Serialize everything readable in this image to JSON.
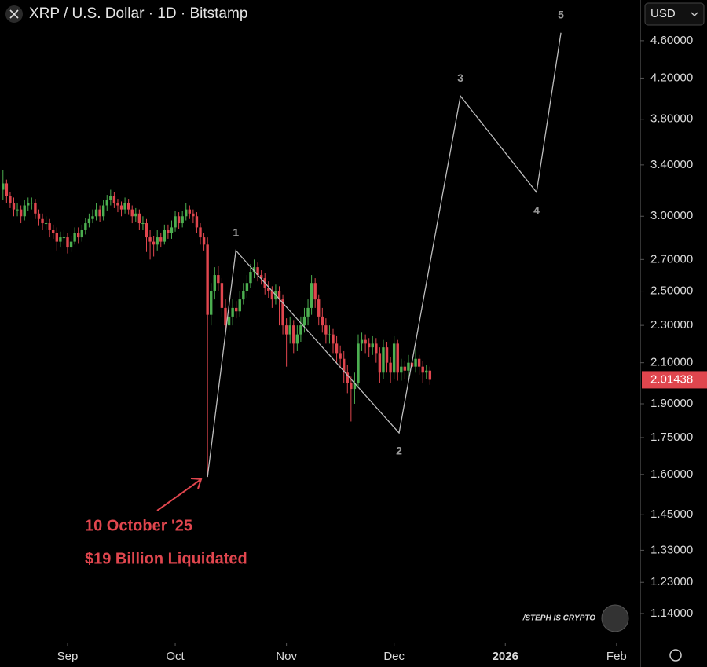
{
  "chart_data": {
    "type": "candlestick",
    "title": "XRP / U.S. Dollar · 1D · Bitstamp",
    "currency": "USD",
    "watermark": "/STEPH IS CRYPTO",
    "annotations": [
      "10 October '25",
      "$19 Billion Liquidated"
    ],
    "log_scale": true,
    "up_color": "#4caf50",
    "down_color": "#e0464e",
    "wave_color": "#bdbdbd",
    "ylim": [
      1.062,
      5.08
    ],
    "yticks": [
      {
        "value": 4.6,
        "label": "4.60000"
      },
      {
        "value": 4.2,
        "label": "4.20000"
      },
      {
        "value": 3.8,
        "label": "3.80000"
      },
      {
        "value": 3.4,
        "label": "3.40000"
      },
      {
        "value": 3.0,
        "label": "3.00000"
      },
      {
        "value": 2.7,
        "label": "2.70000"
      },
      {
        "value": 2.5,
        "label": "2.50000"
      },
      {
        "value": 2.3,
        "label": "2.30000"
      },
      {
        "value": 2.1,
        "label": "2.10000"
      },
      {
        "value": 1.9,
        "label": "1.90000"
      },
      {
        "value": 1.75,
        "label": "1.75000"
      },
      {
        "value": 1.6,
        "label": "1.60000"
      },
      {
        "value": 1.45,
        "label": "1.45000"
      },
      {
        "value": 1.33,
        "label": "1.33000"
      },
      {
        "value": 1.23,
        "label": "1.23000"
      },
      {
        "value": 1.14,
        "label": "1.14000"
      }
    ],
    "xlim": [
      -18.83,
      159.6
    ],
    "xticks": [
      {
        "value": 0,
        "label": "Sep"
      },
      {
        "value": 30,
        "label": "Oct"
      },
      {
        "value": 61,
        "label": "Nov"
      },
      {
        "value": 91,
        "label": "Dec"
      },
      {
        "value": 122,
        "label": "2026"
      },
      {
        "value": 153,
        "label": "Feb"
      }
    ],
    "x": [
      -18,
      -17,
      -16,
      -15,
      -14,
      -13,
      -12,
      -11,
      -10,
      -9,
      -8,
      -7,
      -6,
      -5,
      -4,
      -3,
      -2,
      -1,
      0,
      1,
      2,
      3,
      4,
      5,
      6,
      7,
      8,
      9,
      10,
      11,
      12,
      13,
      14,
      15,
      16,
      17,
      18,
      19,
      20,
      21,
      22,
      23,
      24,
      25,
      26,
      27,
      28,
      29,
      30,
      31,
      32,
      33,
      34,
      35,
      36,
      37,
      38,
      39,
      40,
      41,
      42,
      43,
      44,
      45,
      46,
      47,
      48,
      49,
      50,
      51,
      52,
      53,
      54,
      55,
      56,
      57,
      58,
      59,
      60,
      61,
      62,
      63,
      64,
      65,
      66,
      67,
      68,
      69,
      70,
      71,
      72,
      73,
      74,
      75,
      76,
      77,
      78,
      79,
      80,
      81,
      82,
      83,
      84,
      85,
      86,
      87,
      88,
      89,
      90,
      91,
      92,
      93,
      94,
      95,
      96,
      97,
      98,
      99,
      100,
      101
    ],
    "open": [
      3.2,
      3.25,
      3.15,
      3.1,
      3.05,
      3.05,
      3.0,
      3.08,
      3.1,
      3.1,
      3.02,
      2.98,
      2.95,
      2.95,
      2.9,
      2.88,
      2.82,
      2.85,
      2.85,
      2.78,
      2.82,
      2.88,
      2.85,
      2.9,
      2.95,
      2.98,
      3.0,
      3.05,
      3.0,
      3.08,
      3.12,
      3.15,
      3.1,
      3.08,
      3.05,
      3.1,
      3.05,
      3.0,
      3.02,
      2.95,
      2.95,
      2.85,
      2.82,
      2.8,
      2.85,
      2.82,
      2.9,
      2.88,
      2.92,
      3.0,
      2.95,
      3.0,
      3.05,
      3.02,
      3.0,
      2.92,
      2.85,
      2.8,
      2.36,
      2.5,
      2.6,
      2.55,
      2.4,
      2.3,
      2.35,
      2.4,
      2.38,
      2.45,
      2.5,
      2.55,
      2.62,
      2.65,
      2.6,
      2.58,
      2.52,
      2.5,
      2.45,
      2.5,
      2.45,
      2.3,
      2.25,
      2.3,
      2.2,
      2.25,
      2.3,
      2.35,
      2.4,
      2.55,
      2.45,
      2.35,
      2.3,
      2.25,
      2.25,
      2.2,
      2.15,
      2.12,
      2.05,
      2.0,
      1.97,
      2.0,
      2.2,
      2.22,
      2.2,
      2.18,
      2.2,
      2.15,
      2.05,
      2.18,
      2.1,
      2.05,
      2.2,
      2.05,
      2.08,
      2.06,
      2.1,
      2.08,
      2.12,
      2.08,
      2.05,
      2.06
    ],
    "high": [
      3.36,
      3.28,
      3.18,
      3.14,
      3.1,
      3.08,
      3.12,
      3.14,
      3.14,
      3.13,
      3.05,
      3.02,
      3.0,
      2.98,
      2.94,
      2.92,
      2.89,
      2.9,
      2.88,
      2.86,
      2.92,
      2.92,
      2.94,
      2.99,
      3.02,
      3.05,
      3.1,
      3.08,
      3.12,
      3.16,
      3.2,
      3.18,
      3.13,
      3.11,
      3.14,
      3.13,
      3.08,
      3.06,
      3.05,
      3.0,
      2.98,
      2.9,
      2.86,
      2.9,
      2.88,
      2.94,
      2.94,
      2.97,
      3.04,
      3.03,
      3.04,
      3.1,
      3.08,
      3.05,
      3.03,
      2.95,
      2.88,
      2.85,
      2.55,
      2.65,
      2.66,
      2.58,
      2.45,
      2.4,
      2.45,
      2.44,
      2.5,
      2.55,
      2.6,
      2.67,
      2.7,
      2.68,
      2.63,
      2.61,
      2.56,
      2.53,
      2.54,
      2.53,
      2.48,
      2.34,
      2.35,
      2.33,
      2.3,
      2.35,
      2.4,
      2.45,
      2.6,
      2.58,
      2.48,
      2.4,
      2.34,
      2.3,
      2.28,
      2.24,
      2.19,
      2.16,
      2.09,
      2.03,
      2.05,
      2.25,
      2.26,
      2.25,
      2.23,
      2.24,
      2.23,
      2.18,
      2.22,
      2.21,
      2.13,
      2.24,
      2.22,
      2.12,
      2.11,
      2.14,
      2.13,
      2.17,
      2.14,
      2.11,
      2.09,
      2.08
    ],
    "low": [
      3.12,
      3.1,
      3.06,
      3.0,
      3.0,
      2.95,
      2.97,
      3.04,
      3.05,
      2.98,
      2.93,
      2.9,
      2.9,
      2.85,
      2.84,
      2.76,
      2.78,
      2.8,
      2.74,
      2.75,
      2.8,
      2.81,
      2.82,
      2.87,
      2.92,
      2.95,
      2.97,
      2.96,
      2.97,
      3.04,
      3.08,
      3.06,
      3.03,
      3.0,
      3.02,
      3.01,
      2.95,
      2.96,
      2.9,
      2.9,
      2.75,
      2.7,
      2.72,
      2.76,
      2.78,
      2.8,
      2.84,
      2.84,
      2.89,
      2.91,
      2.92,
      2.97,
      2.98,
      2.95,
      2.88,
      2.8,
      2.76,
      1.59,
      2.3,
      2.45,
      2.5,
      2.35,
      2.25,
      2.26,
      2.3,
      2.34,
      2.35,
      2.42,
      2.46,
      2.52,
      2.58,
      2.56,
      2.54,
      2.48,
      2.46,
      2.4,
      2.42,
      2.3,
      2.25,
      2.08,
      2.2,
      2.15,
      2.16,
      2.21,
      2.26,
      2.3,
      2.36,
      2.4,
      2.3,
      2.26,
      2.2,
      2.2,
      2.15,
      2.1,
      2.07,
      2.0,
      1.95,
      1.82,
      1.9,
      1.98,
      2.16,
      2.15,
      2.13,
      2.14,
      2.1,
      2.0,
      2.02,
      2.05,
      2.0,
      2.02,
      2.01,
      2.01,
      2.02,
      2.03,
      2.04,
      2.05,
      2.04,
      2.0,
      2.02,
      1.99
    ],
    "close": [
      3.25,
      3.15,
      3.1,
      3.05,
      3.05,
      3.0,
      3.08,
      3.1,
      3.1,
      3.02,
      2.98,
      2.95,
      2.95,
      2.9,
      2.88,
      2.82,
      2.85,
      2.85,
      2.78,
      2.82,
      2.88,
      2.85,
      2.9,
      2.95,
      2.98,
      3.0,
      3.05,
      3.0,
      3.08,
      3.12,
      3.15,
      3.1,
      3.08,
      3.05,
      3.1,
      3.05,
      3.0,
      3.02,
      2.95,
      2.95,
      2.85,
      2.82,
      2.8,
      2.85,
      2.82,
      2.9,
      2.88,
      2.92,
      3.0,
      2.95,
      3.0,
      3.05,
      3.02,
      3.0,
      2.92,
      2.85,
      2.8,
      2.36,
      2.5,
      2.6,
      2.55,
      2.4,
      2.3,
      2.35,
      2.4,
      2.38,
      2.45,
      2.5,
      2.55,
      2.62,
      2.65,
      2.6,
      2.58,
      2.52,
      2.5,
      2.45,
      2.5,
      2.45,
      2.3,
      2.25,
      2.3,
      2.2,
      2.25,
      2.3,
      2.35,
      2.4,
      2.55,
      2.45,
      2.35,
      2.3,
      2.25,
      2.25,
      2.2,
      2.15,
      2.12,
      2.05,
      2.0,
      1.97,
      2.0,
      2.2,
      2.22,
      2.2,
      2.18,
      2.2,
      2.15,
      2.05,
      2.18,
      2.1,
      2.05,
      2.2,
      2.05,
      2.08,
      2.06,
      2.1,
      2.08,
      2.12,
      2.08,
      2.05,
      2.06,
      2.01438
    ],
    "wave": {
      "labels": [
        null,
        "1",
        "2",
        "3",
        "4",
        "5"
      ],
      "x": [
        39,
        46.9,
        92.4,
        109.5,
        130.7,
        137.5
      ],
      "values": [
        1.59,
        2.76,
        1.77,
        4.02,
        3.18,
        4.69
      ]
    }
  }
}
